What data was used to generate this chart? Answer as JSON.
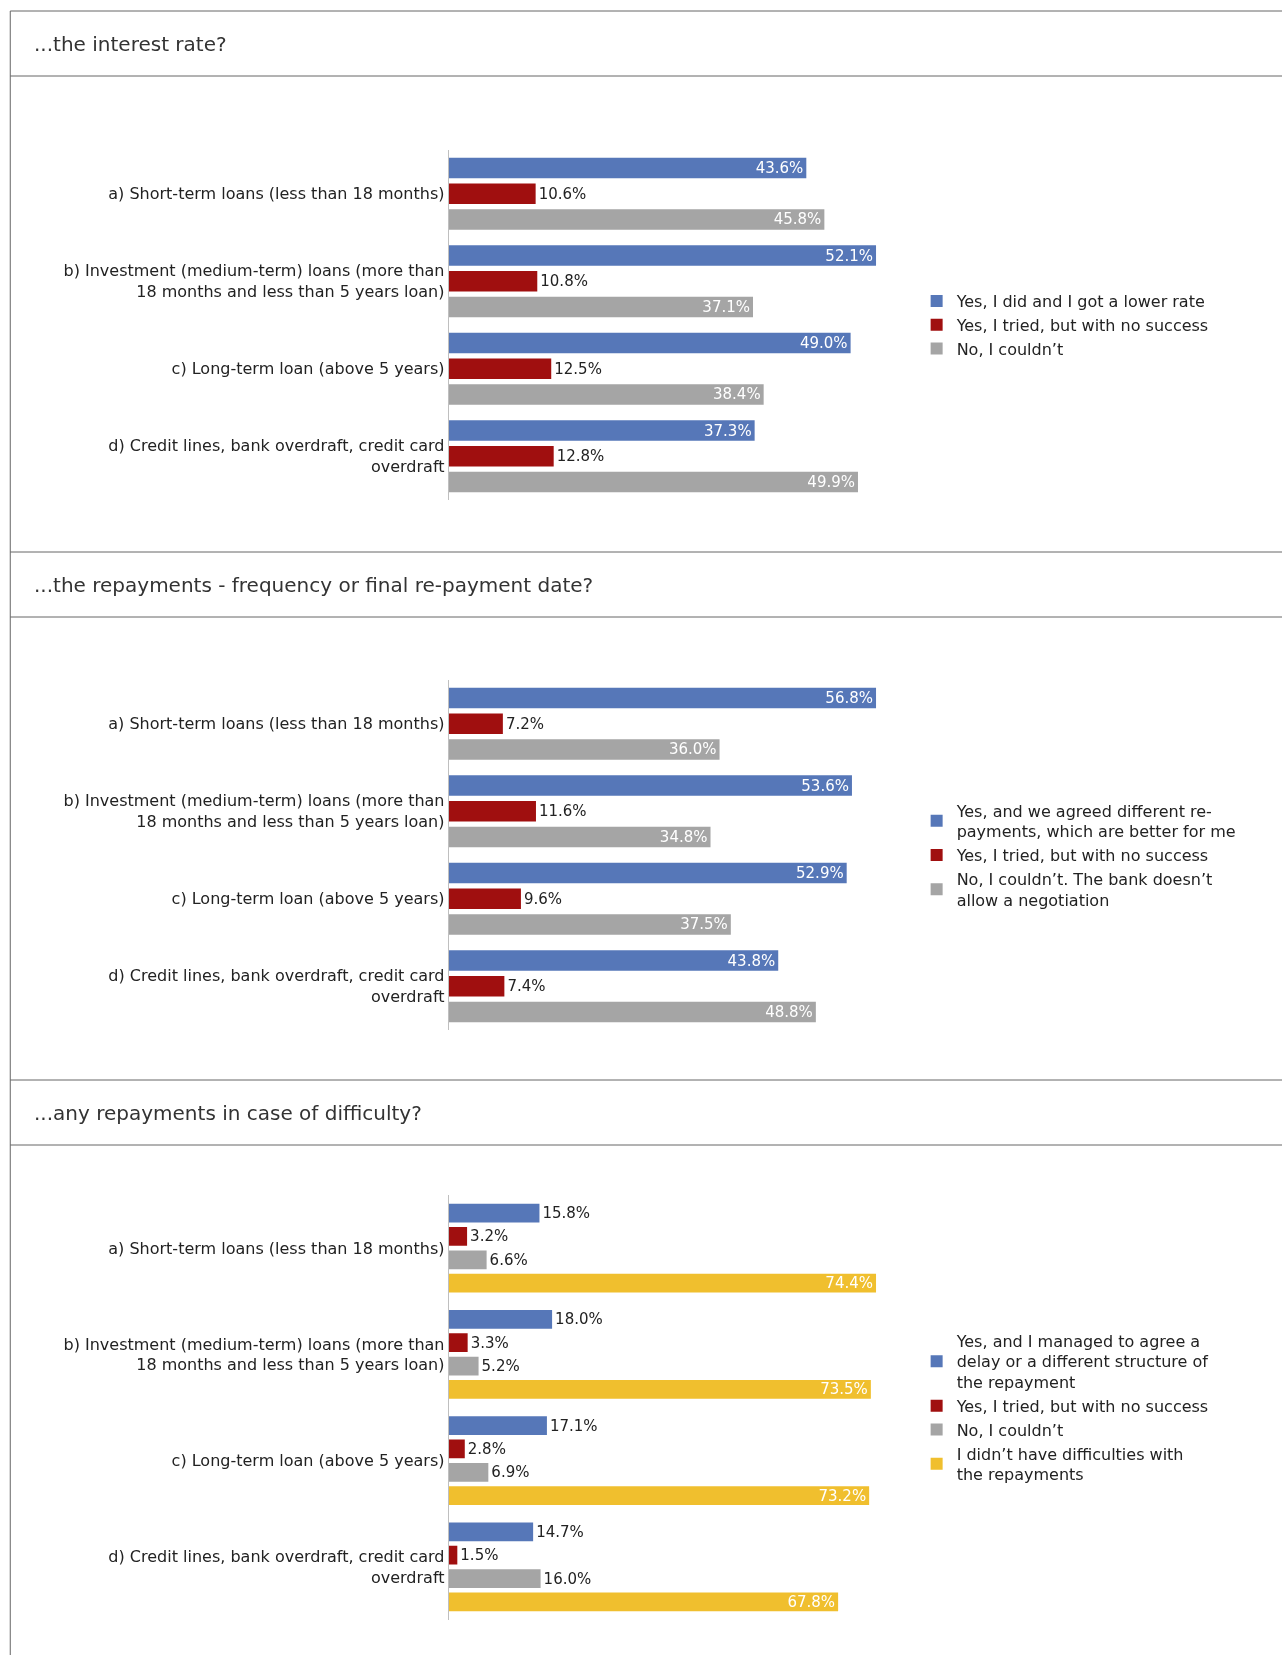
{
  "chart_data": [
    {
      "type": "bar",
      "orientation": "horizontal",
      "title": "...the interest rate?",
      "legend": "right",
      "categories": [
        "a) Short-term loans (less than 18 months)",
        "b) Investment (medium-term) loans (more than 18 months and less than 5 years loan)",
        "c) Long-term loan (above 5 years)",
        "d) Credit lines, bank overdraft, credit card overdraft"
      ],
      "series": [
        {
          "name": "Yes, I did and I got a lower rate",
          "color": "#5677b8",
          "values": [
            43.6,
            52.1,
            49.0,
            37.3
          ],
          "value_labels": [
            "43.6%",
            "52.1%",
            "49.0%",
            "37.3%"
          ]
        },
        {
          "name": "Yes, I tried, but with no success",
          "color": "#a00f0f",
          "values": [
            10.6,
            10.8,
            12.5,
            12.8
          ],
          "value_labels": [
            "10.6%",
            "10.8%",
            "12.5%",
            "12.8%"
          ]
        },
        {
          "name": "No, I couldn’t",
          "color": "#a5a5a5",
          "values": [
            45.8,
            37.1,
            38.4,
            49.9
          ],
          "value_labels": [
            "45.8%",
            "37.1%",
            "38.4%",
            "49.9%"
          ]
        }
      ]
    },
    {
      "type": "bar",
      "orientation": "horizontal",
      "title": "...the repayments - frequency or final re-payment date?",
      "legend": "right",
      "categories": [
        "a) Short-term loans (less than 18 months)",
        "b) Investment (medium-term) loans (more than 18 months and less than 5 years loan)",
        "c) Long-term loan (above 5 years)",
        "d) Credit lines, bank overdraft, credit card overdraft"
      ],
      "series": [
        {
          "name": "Yes, and we agreed different re-payments, which are better for me",
          "color": "#5677b8",
          "values": [
            56.8,
            53.6,
            52.9,
            43.8
          ],
          "value_labels": [
            "56.8%",
            "53.6%",
            "52.9%",
            "43.8%"
          ]
        },
        {
          "name": "Yes, I tried, but with no success",
          "color": "#a00f0f",
          "values": [
            7.2,
            11.6,
            9.6,
            7.4
          ],
          "value_labels": [
            "7.2%",
            "11.6%",
            "9.6%",
            "7.4%"
          ]
        },
        {
          "name": "No, I couldn’t. The bank doesn’t allow a negotiation",
          "color": "#a5a5a5",
          "values": [
            36.0,
            34.8,
            37.5,
            48.8
          ],
          "value_labels": [
            "36.0%",
            "34.8%",
            "37.5%",
            "48.8%"
          ]
        }
      ]
    },
    {
      "type": "bar",
      "orientation": "horizontal",
      "title": "...any repayments in case of difficulty?",
      "legend": "right",
      "categories": [
        "a) Short-term loans (less than 18 months)",
        "b) Investment (medium-term) loans (more than 18 months and less than 5 years loan)",
        "c) Long-term loan (above 5 years)",
        "d) Credit lines, bank overdraft, credit card overdraft"
      ],
      "series": [
        {
          "name": "Yes, and I managed to agree a delay or a different structure of the repayment",
          "color": "#5677b8",
          "values": [
            15.8,
            18.0,
            17.1,
            14.7
          ],
          "value_labels": [
            "15.8%",
            "18.0%",
            "17.1%",
            "14.7%"
          ]
        },
        {
          "name": "Yes, I tried, but with no success",
          "color": "#a00f0f",
          "values": [
            3.2,
            3.3,
            2.8,
            1.5
          ],
          "value_labels": [
            "3.2%",
            "3.3%",
            "2.8%",
            "1.5%"
          ]
        },
        {
          "name": "No, I couldn’t",
          "color": "#a5a5a5",
          "values": [
            6.6,
            5.2,
            6.9,
            16.0
          ],
          "value_labels": [
            "6.6%",
            "5.2%",
            "6.9%",
            "16.0%"
          ]
        },
        {
          "name": "I didn’t have difficulties with the repayments",
          "color": "#f0bf2e",
          "values": [
            74.4,
            73.5,
            73.2,
            67.8
          ],
          "value_labels": [
            "74.4%",
            "73.5%",
            "73.2%",
            "67.8%"
          ]
        }
      ]
    }
  ]
}
